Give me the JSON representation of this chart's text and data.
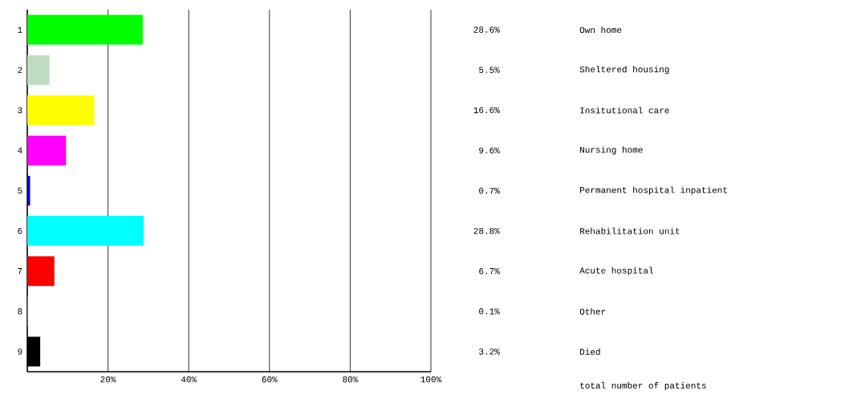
{
  "chart_data": {
    "type": "bar",
    "orientation": "horizontal",
    "categories": [
      "1",
      "2",
      "3",
      "4",
      "5",
      "6",
      "7",
      "8",
      "9"
    ],
    "values": [
      28.6,
      5.5,
      16.6,
      9.6,
      0.7,
      28.8,
      6.7,
      0.1,
      3.2
    ],
    "colors": [
      "#00ff00",
      "#c0dcc0",
      "#ffff00",
      "#ff00ff",
      "#0000ff",
      "#00ffff",
      "#ff0000",
      "#a6caf0",
      "#000000"
    ],
    "value_labels": [
      "28.6%",
      "5.5%",
      "16.6%",
      "9.6%",
      "0.7%",
      "28.8%",
      "6.7%",
      "0.1%",
      "3.2%"
    ],
    "xlim": [
      0,
      100
    ],
    "xticks": [
      {
        "value": 20,
        "label": "20%"
      },
      {
        "value": 40,
        "label": "40%"
      },
      {
        "value": 60,
        "label": "60%"
      },
      {
        "value": 80,
        "label": "80%"
      },
      {
        "value": 100,
        "label": "100%"
      }
    ],
    "grid": "x",
    "annotations": [
      "Own home",
      "Sheltered housing",
      "Insitutional care",
      "Nursing home",
      "Permanent hospital inpatient",
      "Rehabilitation unit",
      "Acute hospital",
      "Other",
      "Died",
      "total number of patients"
    ]
  }
}
